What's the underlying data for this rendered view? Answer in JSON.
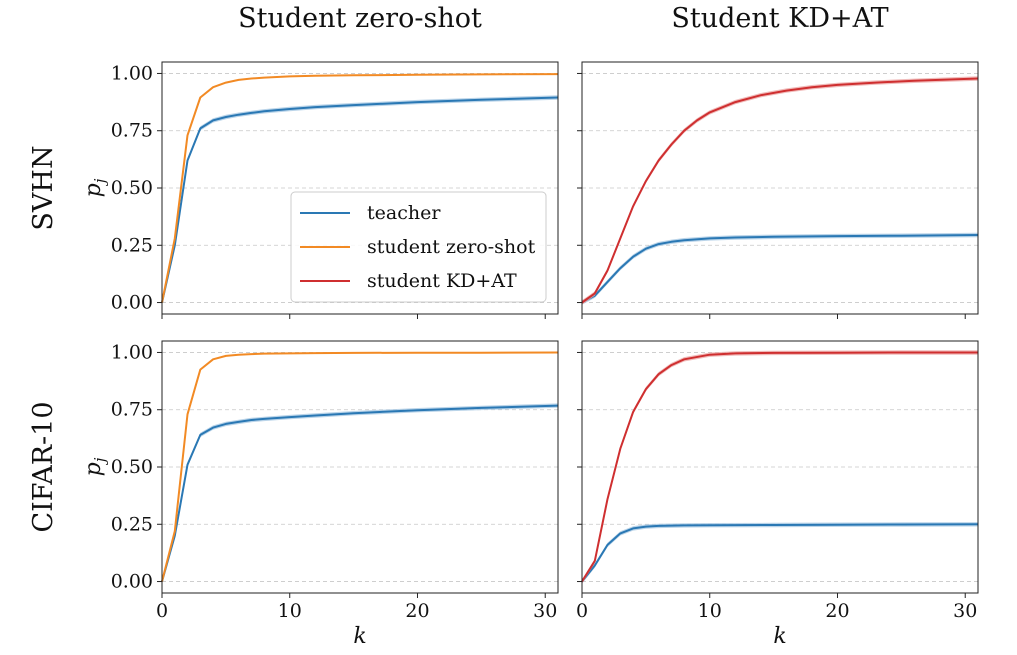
{
  "figure": {
    "column_titles": [
      "Student zero-shot",
      "Student KD+AT"
    ],
    "row_titles": [
      "SVHN",
      "CIFAR-10"
    ]
  },
  "legend": [
    {
      "name": "teacher",
      "color": "#2a78b4"
    },
    {
      "name": "student zero-shot",
      "color": "#f28a24"
    },
    {
      "name": "student KD+AT",
      "color": "#cf2f30"
    }
  ],
  "chart_data": [
    {
      "type": "line",
      "column": "Student zero-shot",
      "row": "SVHN",
      "xlabel": "",
      "ylabel": "p_j",
      "xlim": [
        0,
        31
      ],
      "ylim": [
        -0.05,
        1.05
      ],
      "xticks": [
        0,
        10,
        20,
        30
      ],
      "yticks": [
        "0.00",
        "0.25",
        "0.50",
        "0.75",
        "1.00"
      ],
      "grid": "horizontal dashed",
      "legend_position": "lower-right",
      "series": [
        {
          "name": "teacher",
          "color": "#2a78b4",
          "shaded_band": true,
          "x": [
            0,
            1,
            2,
            3,
            4,
            5,
            6,
            7,
            8,
            10,
            12,
            15,
            20,
            25,
            31
          ],
          "y": [
            0.0,
            0.25,
            0.62,
            0.76,
            0.795,
            0.81,
            0.82,
            0.828,
            0.835,
            0.845,
            0.853,
            0.862,
            0.875,
            0.885,
            0.895
          ]
        },
        {
          "name": "student zero-shot",
          "color": "#f28a24",
          "x": [
            0,
            1,
            2,
            3,
            4,
            5,
            6,
            7,
            8,
            10,
            12,
            15,
            20,
            25,
            31
          ],
          "y": [
            0.0,
            0.28,
            0.73,
            0.895,
            0.94,
            0.96,
            0.972,
            0.978,
            0.982,
            0.987,
            0.99,
            0.992,
            0.994,
            0.996,
            0.997
          ]
        }
      ]
    },
    {
      "type": "line",
      "column": "Student KD+AT",
      "row": "SVHN",
      "xlabel": "",
      "ylabel": "",
      "xlim": [
        0,
        31
      ],
      "ylim": [
        -0.05,
        1.05
      ],
      "xticks": [
        0,
        10,
        20,
        30
      ],
      "grid": "horizontal dashed",
      "series": [
        {
          "name": "teacher",
          "color": "#2a78b4",
          "shaded_band": true,
          "x": [
            0,
            1,
            2,
            3,
            4,
            5,
            6,
            7,
            8,
            10,
            12,
            15,
            20,
            25,
            31
          ],
          "y": [
            0.0,
            0.03,
            0.09,
            0.15,
            0.2,
            0.235,
            0.255,
            0.265,
            0.272,
            0.28,
            0.284,
            0.287,
            0.29,
            0.292,
            0.295
          ]
        },
        {
          "name": "student KD+AT",
          "color": "#cf2f30",
          "shaded_band": true,
          "x": [
            0,
            1,
            2,
            3,
            4,
            5,
            6,
            7,
            8,
            9,
            10,
            12,
            14,
            16,
            18,
            20,
            23,
            26,
            31
          ],
          "y": [
            0.0,
            0.04,
            0.14,
            0.28,
            0.42,
            0.53,
            0.62,
            0.69,
            0.75,
            0.795,
            0.83,
            0.875,
            0.905,
            0.925,
            0.94,
            0.95,
            0.96,
            0.968,
            0.978
          ]
        }
      ]
    },
    {
      "type": "line",
      "column": "Student zero-shot",
      "row": "CIFAR-10",
      "xlabel": "k",
      "ylabel": "p_j",
      "xlim": [
        0,
        31
      ],
      "ylim": [
        -0.05,
        1.05
      ],
      "xticks": [
        0,
        10,
        20,
        30
      ],
      "yticks": [
        "0.00",
        "0.25",
        "0.50",
        "0.75",
        "1.00"
      ],
      "grid": "horizontal dashed",
      "series": [
        {
          "name": "teacher",
          "color": "#2a78b4",
          "shaded_band": true,
          "x": [
            0,
            1,
            2,
            3,
            4,
            5,
            6,
            7,
            8,
            10,
            12,
            15,
            20,
            25,
            31
          ],
          "y": [
            0.0,
            0.2,
            0.51,
            0.64,
            0.672,
            0.688,
            0.697,
            0.705,
            0.71,
            0.718,
            0.725,
            0.735,
            0.748,
            0.758,
            0.768
          ]
        },
        {
          "name": "student zero-shot",
          "color": "#f28a24",
          "x": [
            0,
            1,
            2,
            3,
            4,
            5,
            6,
            7,
            8,
            10,
            12,
            15,
            20,
            25,
            31
          ],
          "y": [
            0.0,
            0.22,
            0.73,
            0.925,
            0.97,
            0.985,
            0.99,
            0.993,
            0.995,
            0.996,
            0.997,
            0.998,
            0.999,
            0.999,
            1.0
          ]
        }
      ]
    },
    {
      "type": "line",
      "column": "Student KD+AT",
      "row": "CIFAR-10",
      "xlabel": "k",
      "ylabel": "",
      "xlim": [
        0,
        31
      ],
      "ylim": [
        -0.05,
        1.05
      ],
      "xticks": [
        0,
        10,
        20,
        30
      ],
      "grid": "horizontal dashed",
      "series": [
        {
          "name": "teacher",
          "color": "#2a78b4",
          "shaded_band": true,
          "x": [
            0,
            1,
            2,
            3,
            4,
            5,
            6,
            8,
            10,
            15,
            20,
            25,
            31
          ],
          "y": [
            0.0,
            0.07,
            0.16,
            0.21,
            0.232,
            0.24,
            0.243,
            0.245,
            0.246,
            0.247,
            0.248,
            0.249,
            0.25
          ]
        },
        {
          "name": "student KD+AT",
          "color": "#cf2f30",
          "shaded_band": true,
          "x": [
            0,
            1,
            2,
            3,
            4,
            5,
            6,
            7,
            8,
            10,
            12,
            15,
            20,
            25,
            31
          ],
          "y": [
            0.0,
            0.09,
            0.36,
            0.58,
            0.74,
            0.84,
            0.905,
            0.945,
            0.97,
            0.99,
            0.996,
            0.998,
            0.999,
            1.0,
            1.0
          ]
        }
      ]
    }
  ]
}
